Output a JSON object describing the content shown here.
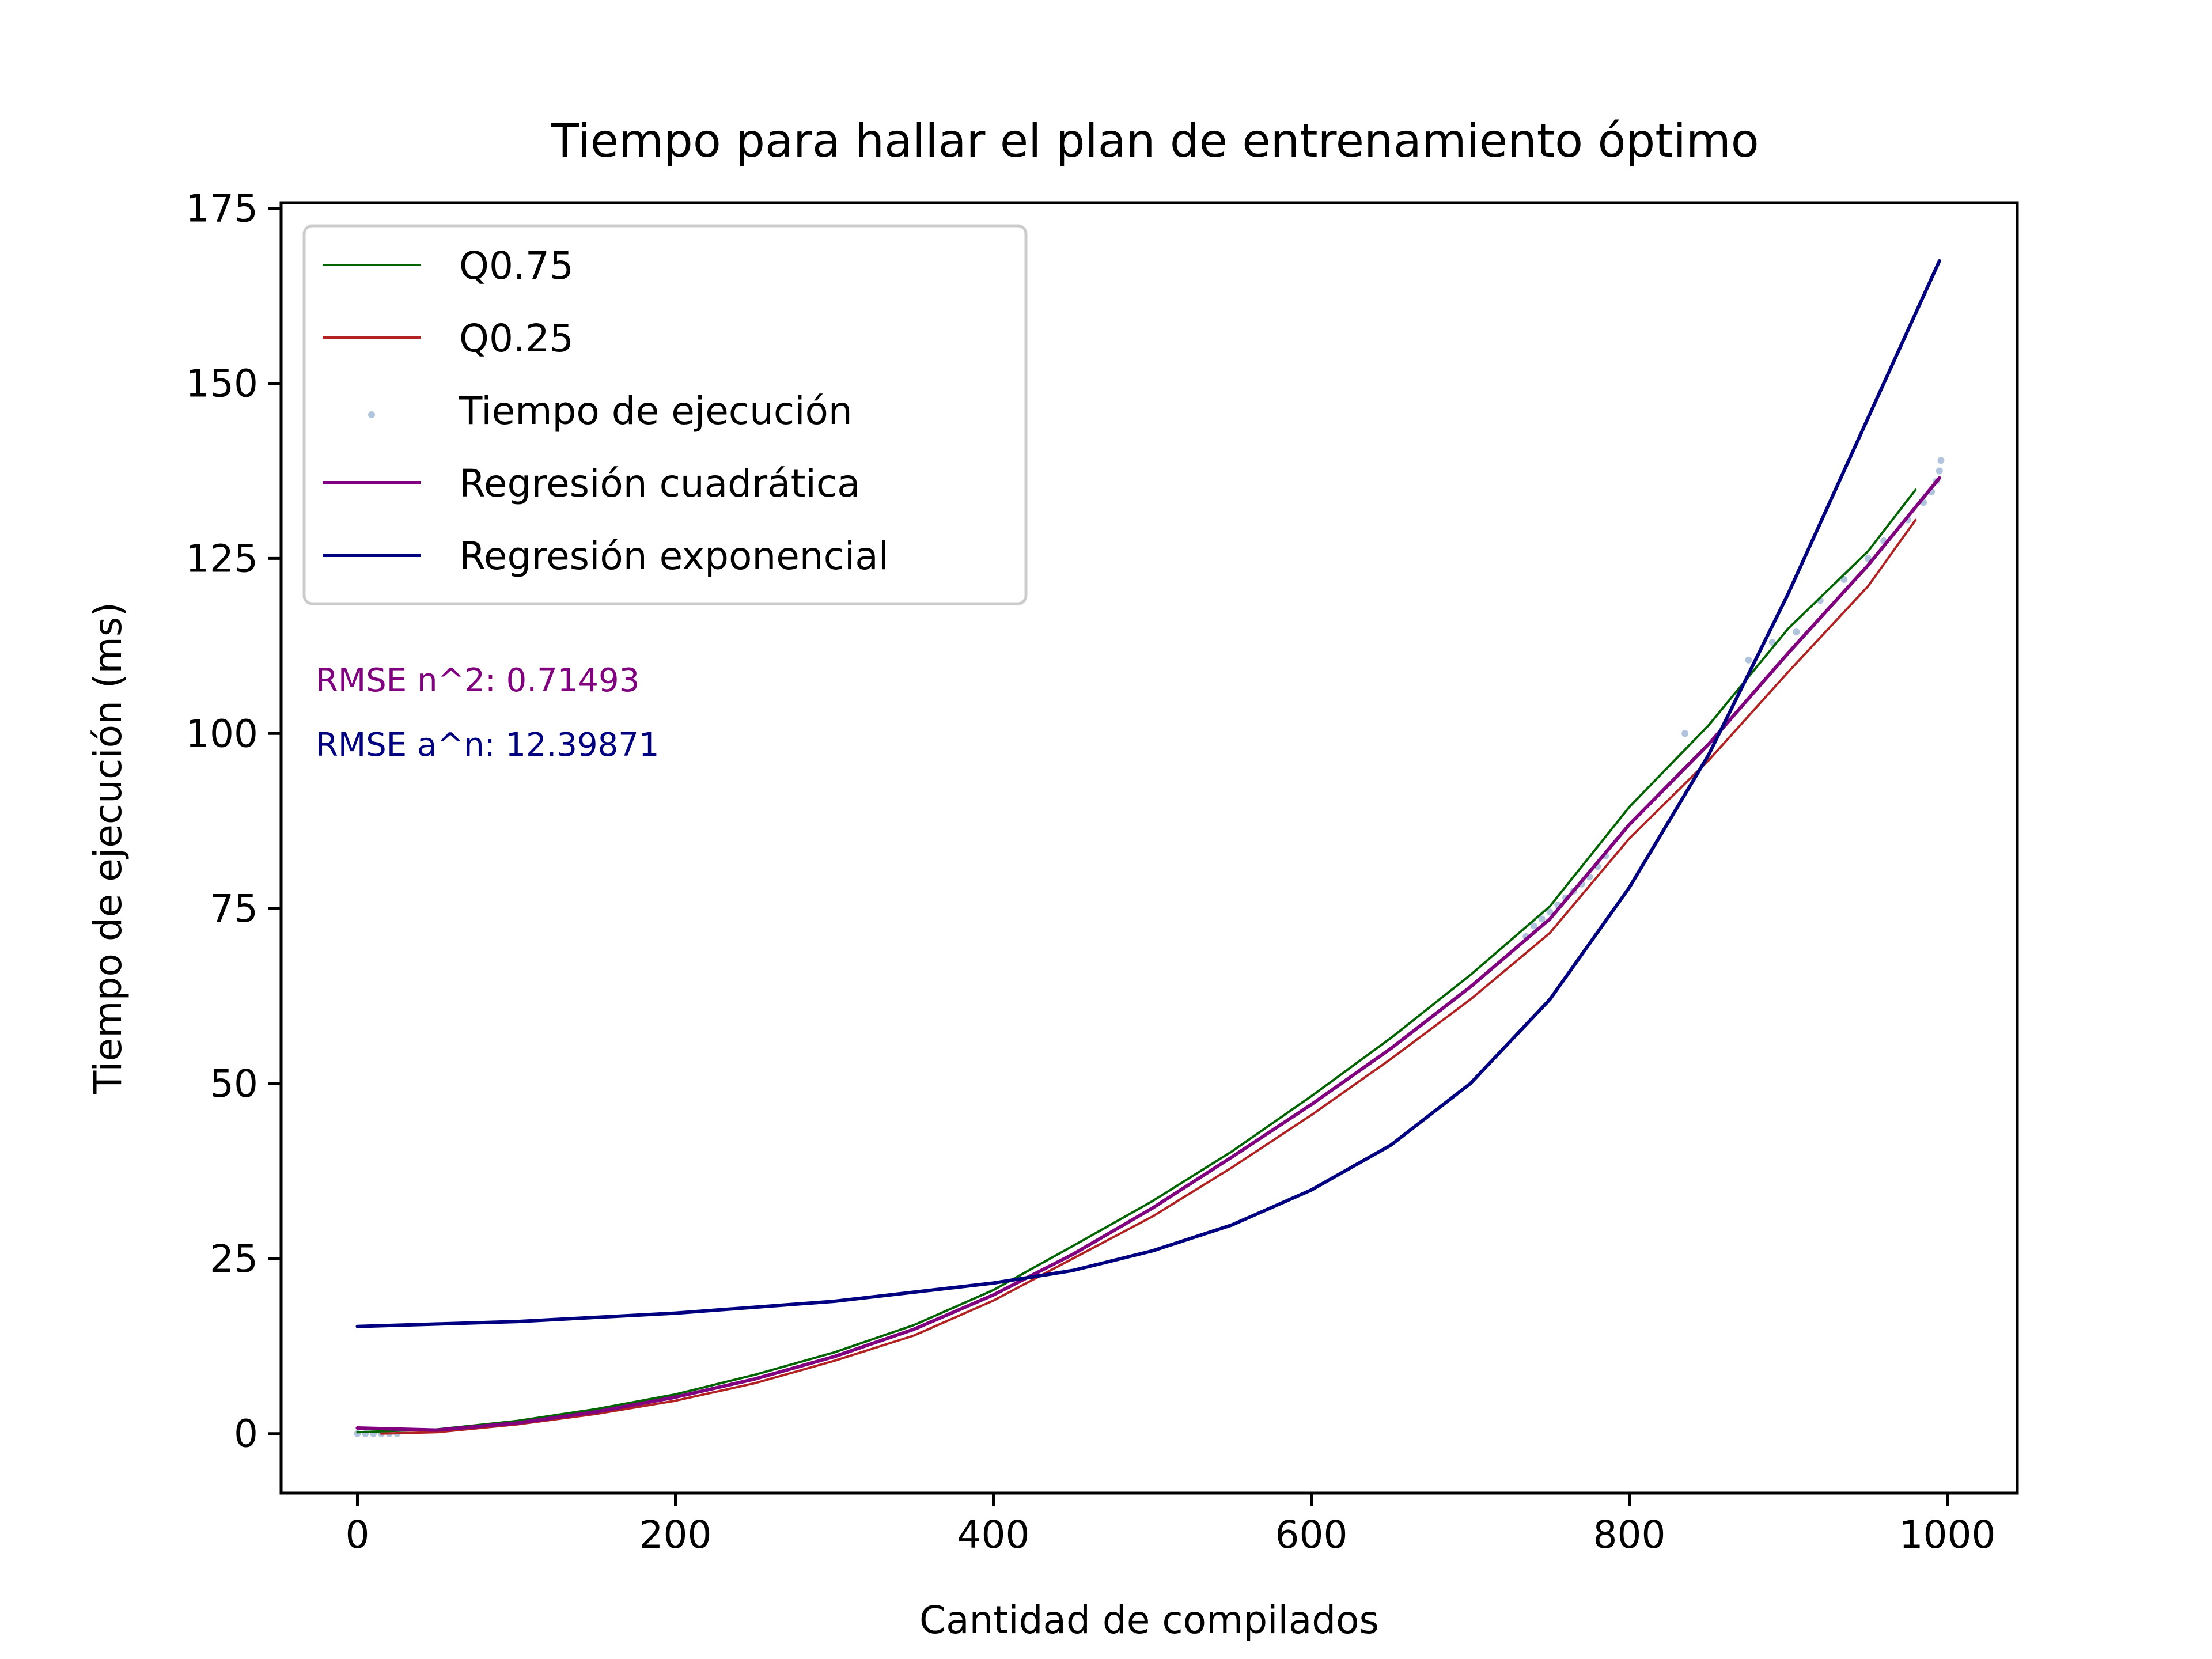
{
  "chart_data": {
    "type": "line",
    "title": "Tiempo para hallar el plan de entrenamiento óptimo",
    "xlabel": "Cantidad de compilados",
    "ylabel": "Tiempo de ejecución (ms)",
    "xlim": [
      -48,
      1044
    ],
    "ylim": [
      -8.5,
      175.8
    ],
    "xticks": [
      0,
      200,
      400,
      600,
      800,
      1000
    ],
    "yticks": [
      0,
      25,
      50,
      75,
      100,
      125,
      150,
      175
    ],
    "grid": false,
    "legend_position": "top-left",
    "colors": {
      "q75": "#006400",
      "q25": "#b22222",
      "scatter": "#b0c4de",
      "quadratic": "#800080",
      "exponential": "#000080",
      "axes": "#000000"
    },
    "legend": [
      {
        "key": "q75",
        "label": "Q0.75",
        "kind": "line"
      },
      {
        "key": "q25",
        "label": "Q0.25",
        "kind": "line"
      },
      {
        "key": "scatter",
        "label": "Tiempo de ejecución",
        "kind": "point"
      },
      {
        "key": "quadratic",
        "label": "Regresión cuadrática",
        "kind": "line"
      },
      {
        "key": "exponential",
        "label": "Regresión exponencial",
        "kind": "line"
      }
    ],
    "annotations": [
      {
        "key": "quadratic",
        "text": "RMSE n^2: 0.71493"
      },
      {
        "key": "exponential",
        "text": "RMSE a^n: 12.39871"
      }
    ],
    "series": [
      {
        "key": "q75",
        "name": "Q0.75",
        "x": [
          0,
          50,
          100,
          150,
          200,
          250,
          300,
          350,
          400,
          450,
          500,
          550,
          600,
          650,
          700,
          750,
          800,
          850,
          900,
          950,
          980
        ],
        "y": [
          0.2,
          0.6,
          1.8,
          3.5,
          5.6,
          8.4,
          11.6,
          15.5,
          20.5,
          26.8,
          33.2,
          40.3,
          48.2,
          56.5,
          65.5,
          75.3,
          89.5,
          101.2,
          115.0,
          126.0,
          134.8
        ]
      },
      {
        "key": "q25",
        "name": "Q0.25",
        "x": [
          15,
          50,
          100,
          150,
          200,
          250,
          300,
          350,
          400,
          450,
          500,
          550,
          600,
          650,
          700,
          750,
          800,
          850,
          900,
          950,
          980
        ],
        "y": [
          0.0,
          0.2,
          1.3,
          2.8,
          4.7,
          7.2,
          10.4,
          14.0,
          19.0,
          25.0,
          31.0,
          38.0,
          45.5,
          53.5,
          62.0,
          71.5,
          85.0,
          96.2,
          108.8,
          121.0,
          130.5
        ]
      },
      {
        "key": "quadratic",
        "name": "Regresión cuadrática",
        "x": [
          0,
          50,
          100,
          150,
          200,
          250,
          300,
          350,
          400,
          450,
          500,
          550,
          600,
          650,
          700,
          750,
          800,
          850,
          900,
          950,
          995
        ],
        "y": [
          0.8,
          0.5,
          1.5,
          3.1,
          5.2,
          7.8,
          11.0,
          14.9,
          19.8,
          25.6,
          32.2,
          39.5,
          47.0,
          55.0,
          63.8,
          73.5,
          87.0,
          98.5,
          111.5,
          124.0,
          136.5
        ]
      },
      {
        "key": "exponential",
        "name": "Regresión exponencial",
        "x": [
          0,
          100,
          200,
          300,
          400,
          450,
          500,
          550,
          600,
          650,
          700,
          750,
          800,
          850,
          900,
          950,
          995
        ],
        "y": [
          15.3,
          16.0,
          17.2,
          18.9,
          21.5,
          23.3,
          26.1,
          29.8,
          34.8,
          41.2,
          50.0,
          62.0,
          78.0,
          97.0,
          120.0,
          145.0,
          167.5
        ]
      },
      {
        "key": "scatter",
        "name": "Tiempo de ejecución",
        "x": [
          0,
          5,
          10,
          15,
          20,
          25,
          735,
          740,
          745,
          750,
          755,
          760,
          765,
          770,
          775,
          780,
          785,
          835,
          875,
          890,
          905,
          920,
          935,
          950,
          960,
          975,
          985,
          990,
          993,
          995,
          996
        ],
        "y": [
          0.0,
          0.0,
          0.0,
          0.0,
          0.0,
          0.0,
          71.0,
          72.5,
          73.5,
          74.5,
          75.5,
          76.5,
          77.5,
          78.5,
          79.5,
          81.0,
          82.5,
          100.0,
          110.5,
          113.0,
          114.5,
          119.0,
          122.0,
          125.0,
          127.5,
          130.5,
          133.0,
          134.5,
          136.0,
          137.5,
          139.0
        ]
      }
    ]
  }
}
